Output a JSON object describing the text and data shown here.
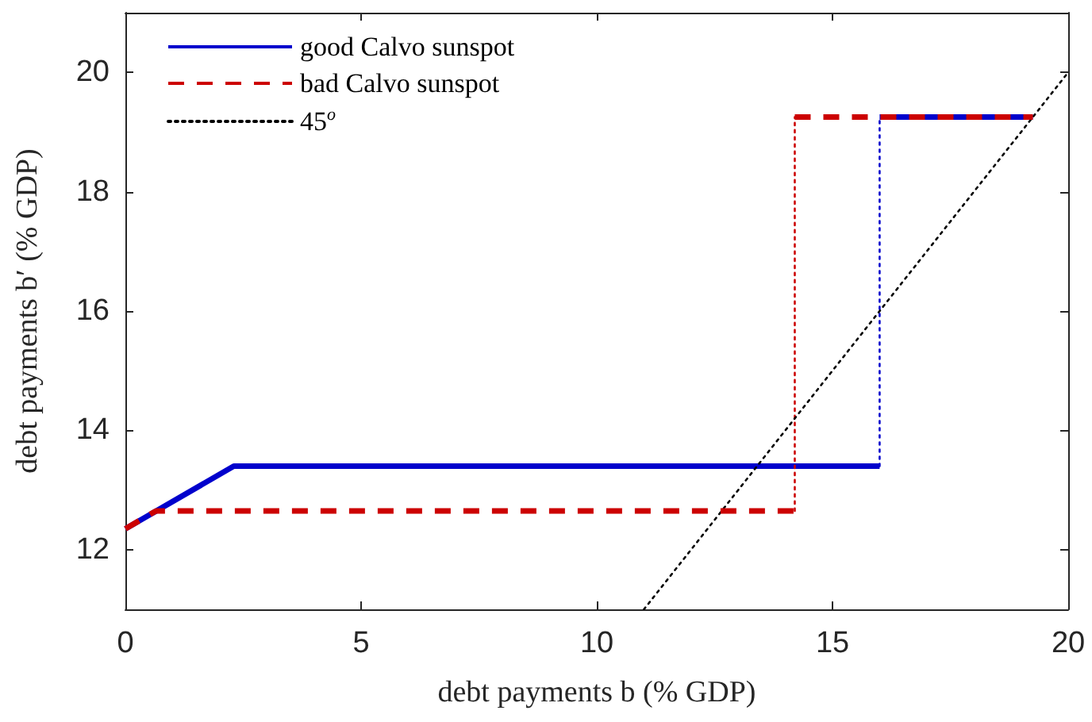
{
  "chart_data": {
    "type": "line",
    "xlabel": "debt payments b (% GDP)",
    "ylabel": "debt payments b′ (% GDP)",
    "xlim": [
      0,
      20
    ],
    "xticks": [
      0,
      5,
      10,
      15,
      20
    ],
    "ylim": [
      11,
      21
    ],
    "yticks": [
      12,
      14,
      16,
      18,
      20
    ],
    "grid": false,
    "legend": "top left",
    "marker": "none",
    "series": [
      {
        "name": "good Calvo sunspot",
        "color": "#0000cc",
        "line_style": "solid",
        "x": [
          0,
          2.3,
          16
        ],
        "values": [
          12.35,
          13.4,
          13.4
        ]
      },
      {
        "color": "#0000cc",
        "line_style": "dotted",
        "x": [
          16,
          16
        ],
        "values": [
          13.4,
          19.25
        ]
      },
      {
        "color": "#cc0000",
        "line_style": "dotted",
        "x": [
          14.2,
          14.2
        ],
        "values": [
          12.65,
          19.25
        ]
      },
      {
        "name": "bad Calvo sunspot",
        "color": "#cc0000",
        "line_style": "dashed",
        "x": [
          0,
          0.65,
          14.2
        ],
        "values": [
          12.35,
          12.65,
          12.65
        ]
      },
      {
        "color": "#0000cc",
        "line_style": "solid",
        "x": [
          16,
          19.25
        ],
        "values": [
          19.25,
          19.25
        ]
      },
      {
        "color": "#cc0000",
        "line_style": "dashed",
        "x": [
          14.2,
          19.25
        ],
        "values": [
          19.25,
          19.25
        ]
      },
      {
        "name": "45$^{o}$",
        "color": "#000000",
        "line_style": "dotted",
        "x": [
          11,
          20
        ],
        "values": [
          11,
          20
        ]
      }
    ]
  }
}
